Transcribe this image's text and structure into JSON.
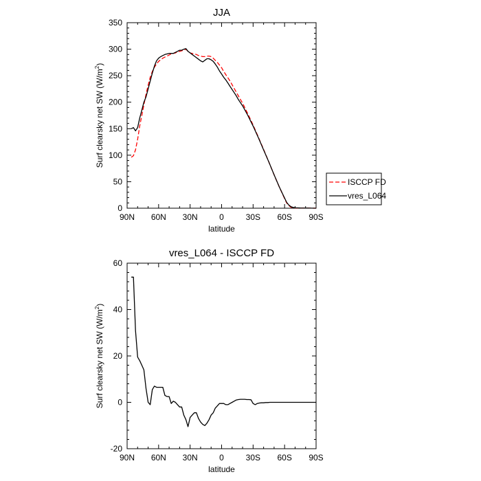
{
  "chart_data": [
    {
      "type": "line",
      "title": "JJA",
      "xlabel": "latitude",
      "ylabel_main": "Surf clearsky net SW (W/m",
      "ylabel_sup": "2",
      "ylabel_end": ")",
      "xlim": [
        90,
        -90
      ],
      "ylim": [
        0,
        350
      ],
      "xticks": [
        90,
        60,
        30,
        0,
        -30,
        -60,
        -90
      ],
      "xtick_labels": [
        "90N",
        "60N",
        "30N",
        "0",
        "30S",
        "60S",
        "90S"
      ],
      "yticks": [
        0,
        50,
        100,
        150,
        200,
        250,
        300,
        350
      ],
      "ytick_labels": [
        "0",
        "50",
        "100",
        "150",
        "200",
        "250",
        "300",
        "350"
      ],
      "legend_position": "right",
      "series": [
        {
          "name": "ISCCP FD",
          "color": "#ff0000",
          "dash": true,
          "x": [
            86,
            84,
            82,
            80,
            78,
            76,
            74,
            72,
            70,
            68,
            66,
            64,
            62,
            60,
            58,
            56,
            54,
            52,
            50,
            48,
            46,
            44,
            42,
            40,
            38,
            36,
            34,
            32,
            30,
            28,
            26,
            24,
            22,
            20,
            18,
            16,
            14,
            12,
            10,
            8,
            6,
            4,
            2,
            0,
            -2,
            -4,
            -6,
            -8,
            -10,
            -12,
            -14,
            -16,
            -18,
            -20,
            -25,
            -30,
            -35,
            -40,
            -45,
            -50,
            -55,
            -60,
            -62,
            -64,
            -66,
            -68,
            -70,
            -75,
            -80,
            -85,
            -90
          ],
          "y": [
            96,
            99,
            110,
            130,
            155,
            175,
            195,
            215,
            232,
            247,
            258,
            266,
            272,
            277,
            280,
            283,
            285,
            287,
            289,
            291,
            292,
            293,
            295,
            296,
            297,
            298,
            300,
            296,
            293,
            292,
            291,
            290,
            288,
            287,
            286,
            286,
            287,
            287,
            286,
            283,
            279,
            275,
            270,
            265,
            258,
            252,
            246,
            240,
            233,
            226,
            219,
            212,
            205,
            198,
            178,
            157,
            134,
            111,
            87,
            63,
            40,
            18,
            10,
            5,
            2,
            1,
            0.5,
            0.3,
            0.2,
            0.1,
            0
          ]
        },
        {
          "name": "vres_L064",
          "color": "#000000",
          "dash": false,
          "x": [
            86,
            84,
            82,
            80,
            78,
            76,
            74,
            72,
            70,
            68,
            66,
            64,
            62,
            60,
            58,
            56,
            54,
            52,
            50,
            48,
            46,
            44,
            42,
            40,
            38,
            36,
            34,
            32,
            30,
            28,
            26,
            24,
            22,
            20,
            18,
            16,
            14,
            12,
            10,
            8,
            6,
            4,
            2,
            0,
            -2,
            -4,
            -6,
            -8,
            -10,
            -12,
            -14,
            -16,
            -18,
            -20,
            -25,
            -30,
            -35,
            -40,
            -45,
            -50,
            -55,
            -60,
            -62,
            -64,
            -66,
            -68,
            -70,
            -75,
            -80,
            -85,
            -90
          ],
          "y": [
            150,
            152,
            146,
            152,
            170,
            185,
            200,
            210,
            225,
            240,
            255,
            268,
            278,
            283,
            286,
            288,
            290,
            291,
            292,
            292,
            292,
            294,
            296,
            298,
            298,
            300,
            301,
            296,
            293,
            290,
            287,
            284,
            281,
            278,
            276,
            279,
            282,
            282,
            280,
            277,
            272,
            266,
            259,
            253,
            247,
            242,
            236,
            230,
            224,
            218,
            212,
            205,
            199,
            193,
            175,
            155,
            133,
            110,
            87,
            63,
            40,
            19,
            11,
            6,
            3,
            1.5,
            0.8,
            0.4,
            0.2,
            0.1,
            0
          ]
        }
      ]
    },
    {
      "type": "line",
      "title": "vres_L064 - ISCCP FD",
      "xlabel": "latitude",
      "ylabel_main": "Surf clearsky net SW (W/m",
      "ylabel_sup": "2",
      "ylabel_end": ")",
      "xlim": [
        90,
        -90
      ],
      "ylim": [
        -20,
        60
      ],
      "xticks": [
        90,
        60,
        30,
        0,
        -30,
        -60,
        -90
      ],
      "xtick_labels": [
        "90N",
        "60N",
        "30N",
        "0",
        "30S",
        "60S",
        "90S"
      ],
      "yticks": [
        -20,
        0,
        20,
        40,
        60
      ],
      "ytick_labels": [
        "-20",
        "0",
        "20",
        "40",
        "60"
      ],
      "series": [
        {
          "name": "vres_L064 - ISCCP FD",
          "color": "#000000",
          "dash": false,
          "x": [
            86,
            84,
            82,
            80,
            78,
            76,
            74,
            72,
            70,
            68,
            66,
            64,
            62,
            60,
            58,
            56,
            54,
            52,
            50,
            48,
            46,
            44,
            42,
            40,
            38,
            36,
            34,
            32,
            30,
            28,
            26,
            24,
            22,
            20,
            18,
            16,
            14,
            12,
            10,
            8,
            6,
            4,
            2,
            0,
            -2,
            -4,
            -6,
            -8,
            -10,
            -12,
            -14,
            -16,
            -18,
            -20,
            -22,
            -24,
            -26,
            -28,
            -30,
            -32,
            -34,
            -36,
            -38,
            -40,
            -42,
            -44,
            -46,
            -48,
            -50,
            -52,
            -54,
            -56,
            -58,
            -60,
            -62,
            -64,
            -66,
            -68,
            -70,
            -75,
            -80,
            -85,
            -90
          ],
          "y": [
            54,
            54,
            31,
            19.5,
            18,
            16,
            14,
            6,
            0,
            -1,
            5.5,
            7,
            6.5,
            6.5,
            6.5,
            6.5,
            3,
            2.5,
            2.5,
            -0.5,
            0.5,
            0,
            -1,
            -2,
            -2,
            -5.5,
            -7.5,
            -10.5,
            -6.5,
            -5.5,
            -4.5,
            -4.5,
            -7,
            -8.5,
            -9.5,
            -10,
            -9,
            -7.5,
            -5.5,
            -4.5,
            -2.5,
            -1.5,
            -0.5,
            -0.5,
            -0.5,
            -1,
            -1,
            -0.5,
            0,
            0.5,
            1,
            1.2,
            1.3,
            1.3,
            1.3,
            1.2,
            1.2,
            1.1,
            -0.5,
            -1,
            -0.5,
            -0.3,
            -0.2,
            -0.2,
            -0.1,
            -0.1,
            0,
            0,
            0,
            0,
            0,
            0,
            0,
            0,
            0,
            0,
            0,
            0,
            0,
            0,
            0,
            0,
            0
          ]
        }
      ]
    }
  ]
}
